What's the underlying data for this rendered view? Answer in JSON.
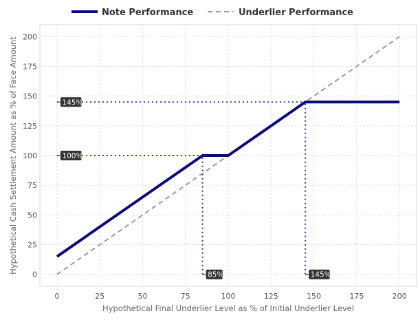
{
  "chart_data": {
    "type": "line",
    "xlabel": "Hypothetical Final Underlier Level as % of Initial Underlier Level",
    "ylabel": "Hypothetical Cash Settlement Amount as % of Face Amount",
    "xlim": [
      -10,
      210
    ],
    "ylim": [
      -10,
      210
    ],
    "xticks": [
      0,
      25,
      50,
      75,
      100,
      125,
      150,
      175,
      200
    ],
    "yticks": [
      0,
      25,
      50,
      75,
      100,
      125,
      150,
      175,
      200
    ],
    "grid": true,
    "legend_position": "top",
    "series": [
      {
        "name": "Note Performance",
        "color": "#0a0a78",
        "style": "solid",
        "x": [
          0,
          85,
          100,
          145,
          200
        ],
        "y": [
          15,
          100,
          100,
          145,
          145
        ]
      },
      {
        "name": "Underlier Performance",
        "color": "#9b9b9b",
        "style": "dashed",
        "x": [
          0,
          200
        ],
        "y": [
          0,
          200
        ]
      }
    ],
    "reference_lines": [
      {
        "orientation": "horizontal",
        "value": 145,
        "from": 0,
        "to": 145,
        "label": "145%"
      },
      {
        "orientation": "horizontal",
        "value": 100,
        "from": 0,
        "to": 85,
        "label": "100%"
      },
      {
        "orientation": "vertical",
        "value": 85,
        "from": 0,
        "to": 100,
        "label": "85%"
      },
      {
        "orientation": "vertical",
        "value": 145,
        "from": 0,
        "to": 145,
        "label": "145%"
      }
    ]
  }
}
